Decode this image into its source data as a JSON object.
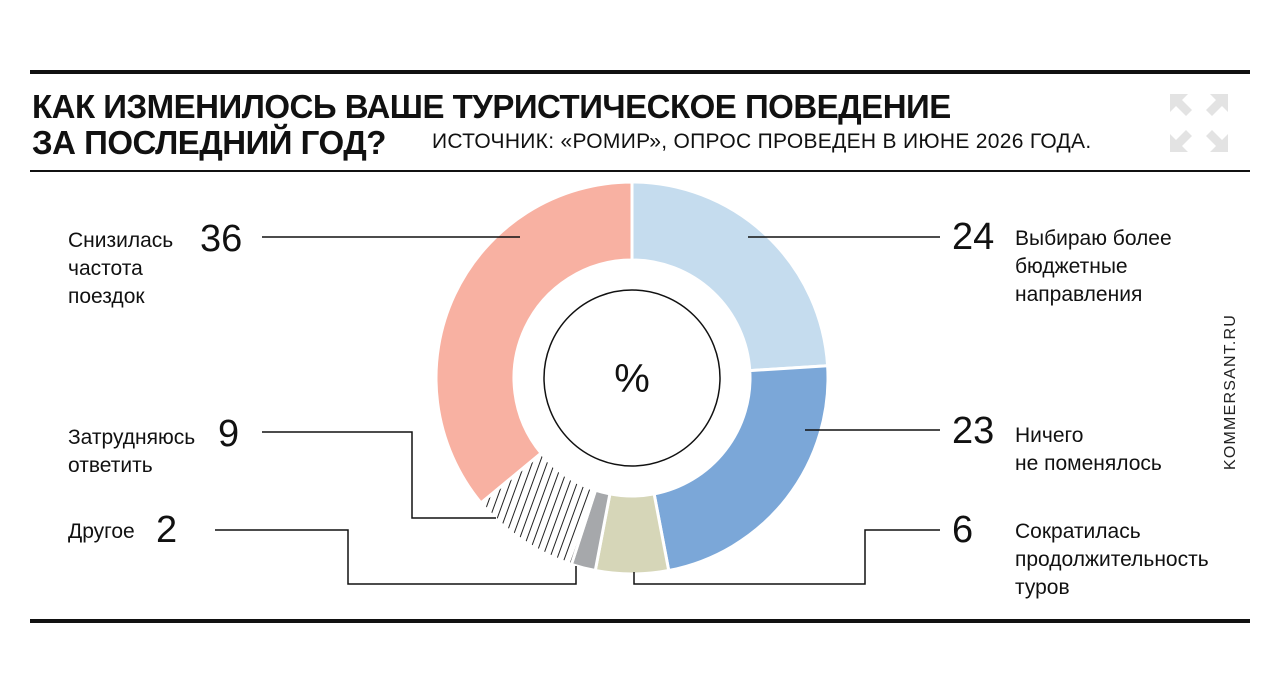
{
  "header": {
    "title_line1": "КАК ИЗМЕНИЛОСЬ ВАШЕ ТУРИСТИЧЕСКОЕ ПОВЕДЕНИЕ",
    "title_line2": "ЗА ПОСЛЕДНИЙ ГОД?",
    "source": "ИСТОЧНИК: «РОМИР», ОПРОС ПРОВЕДЕН В ИЮНЕ 2026 ГОДА.",
    "site": "KOMMERSANT.RU"
  },
  "chart_data": {
    "type": "pie",
    "center_label": "%",
    "slices": [
      {
        "name": "Выбираю более бюджетные направления",
        "value": 24,
        "color": "#c5dcee",
        "pattern": "none"
      },
      {
        "name": "Ничего не поменялось",
        "value": 23,
        "color": "#7ba7d8",
        "pattern": "none"
      },
      {
        "name": "Сократилась продолжительность туров",
        "value": 6,
        "color": "#d6d6b8",
        "pattern": "none"
      },
      {
        "name": "Другое",
        "value": 2,
        "color": "#a6a8ab",
        "pattern": "none"
      },
      {
        "name": "Затрудняюсь ответить",
        "value": 9,
        "color": "#ffffff",
        "pattern": "hatch"
      },
      {
        "name": "Снизилась частота поездок",
        "value": 36,
        "color": "#f8b1a2",
        "pattern": "none"
      }
    ]
  },
  "labels": {
    "budget": {
      "value": "24",
      "text": "Выбираю более\nбюджетные\nнаправления"
    },
    "nochange": {
      "value": "23",
      "text": "Ничего\nне поменялось"
    },
    "shorter": {
      "value": "6",
      "text": "Сократилась\nпродолжительность\nтуров"
    },
    "other": {
      "value": "2",
      "text": "Другое"
    },
    "unsure": {
      "value": "9",
      "text": "Затрудняюсь\nответить"
    },
    "lessoften": {
      "value": "36",
      "text": "Снизилась\nчастота\nпоездок"
    }
  }
}
